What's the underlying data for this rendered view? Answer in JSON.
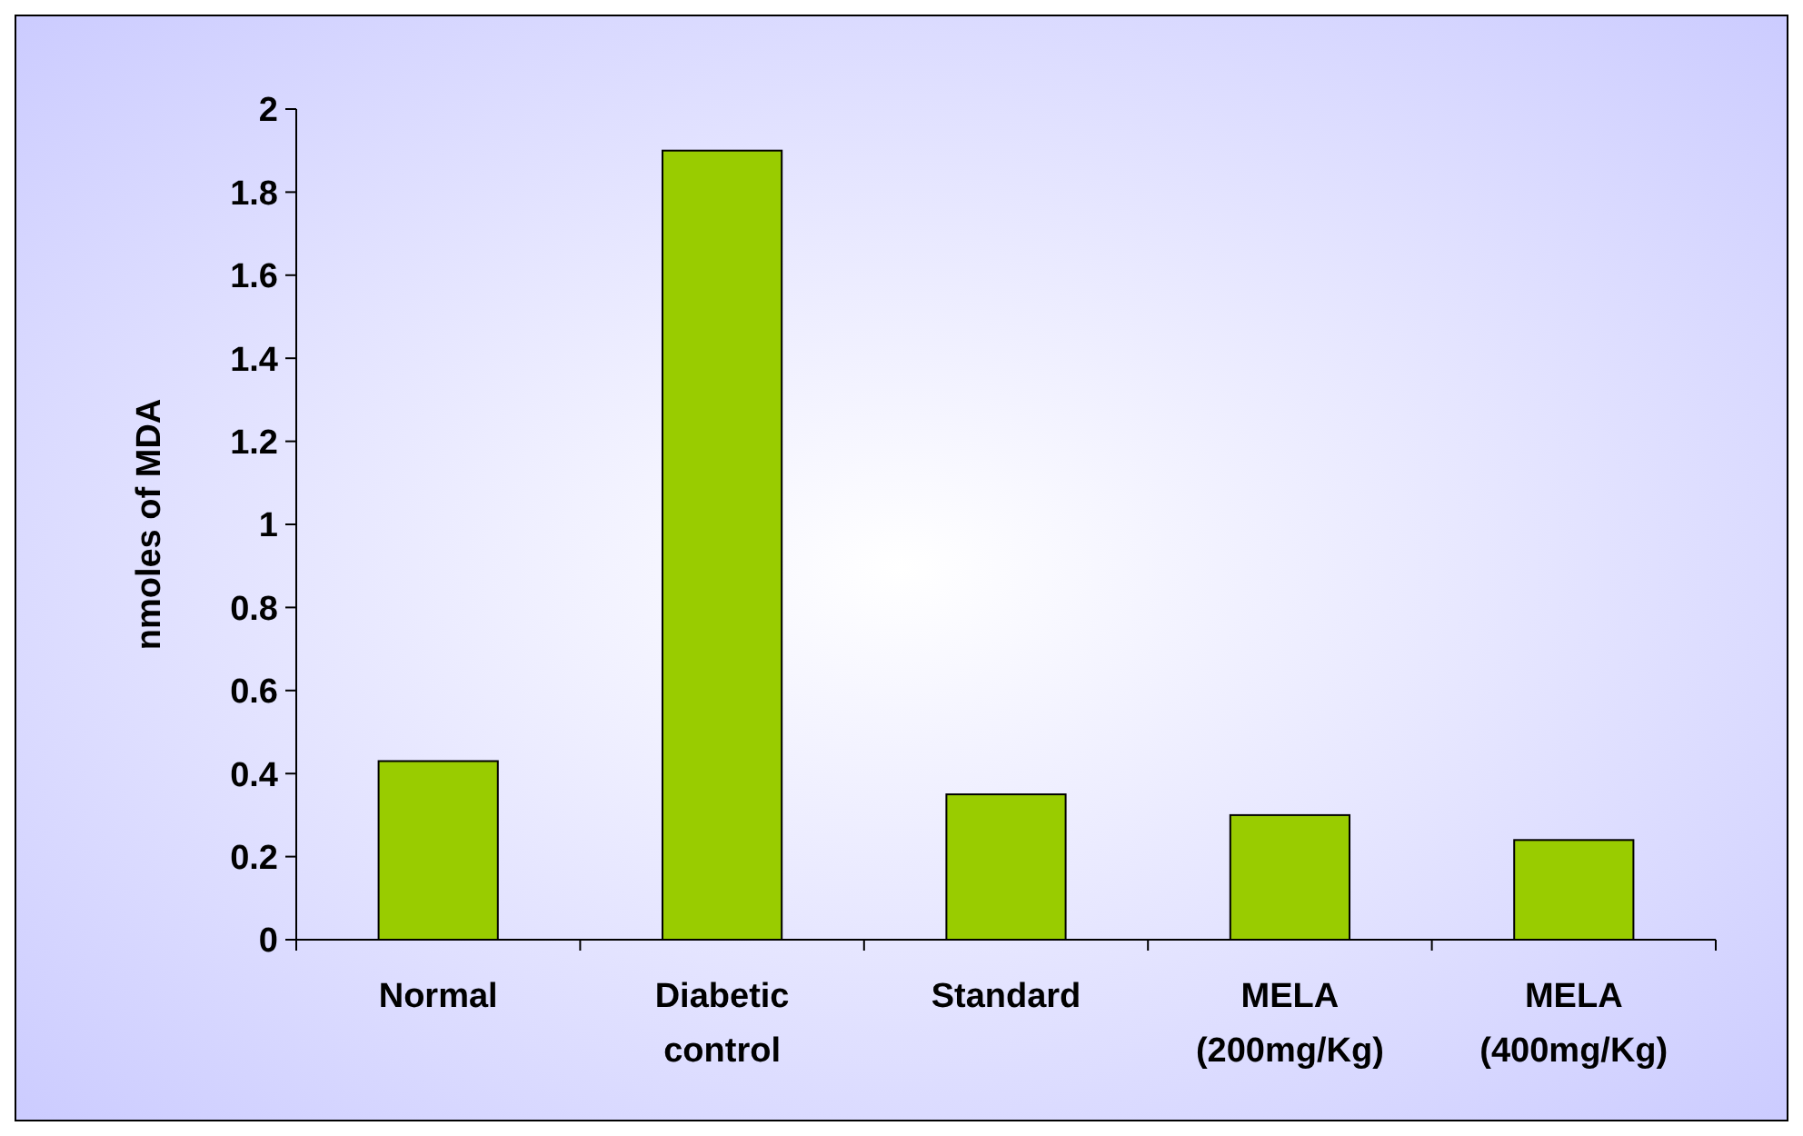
{
  "chart_data": {
    "type": "bar",
    "ylabel": "nmoles of MDA",
    "categories": [
      "Normal",
      "Diabetic control",
      "Standard",
      "MELA (200mg/Kg)",
      "MELA (400mg/Kg)"
    ],
    "values": [
      0.43,
      1.9,
      0.35,
      0.3,
      0.24
    ],
    "color": "#99cc00",
    "ylim": [
      0,
      2
    ],
    "yticks": [
      0,
      0.2,
      0.4,
      0.6,
      0.8,
      1,
      1.2,
      1.4,
      1.6,
      1.8,
      2
    ],
    "grid": false
  }
}
